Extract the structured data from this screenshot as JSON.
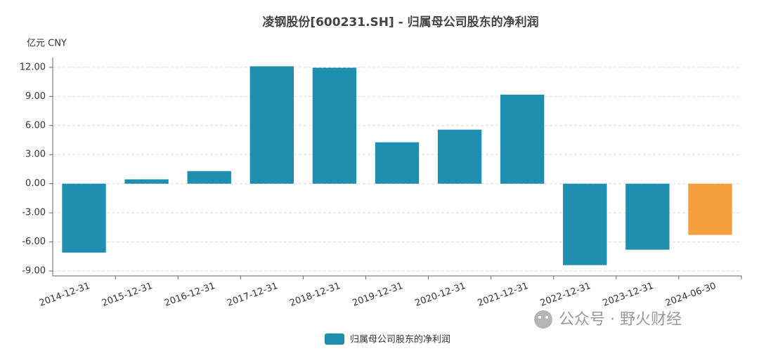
{
  "chart_data": {
    "type": "bar",
    "title": "凌钢股份[600231.SH] - 归属母公司股东的净利润",
    "y_unit": "亿元  CNY",
    "categories": [
      "2014-12-31",
      "2015-12-31",
      "2016-12-31",
      "2017-12-31",
      "2018-12-31",
      "2019-12-31",
      "2020-12-31",
      "2021-12-31",
      "2022-12-31",
      "2023-12-31",
      "2024-06-30"
    ],
    "series": [
      {
        "name": "归属母公司股东的净利润",
        "color": "#1f8fb0",
        "values": [
          -7.1,
          0.45,
          1.3,
          12.1,
          11.95,
          4.27,
          5.57,
          9.18,
          -8.39,
          -6.8,
          -5.28
        ],
        "colors": [
          "#1f8fb0",
          "#1f8fb0",
          "#1f8fb0",
          "#1f8fb0",
          "#1f8fb0",
          "#1f8fb0",
          "#1f8fb0",
          "#1f8fb0",
          "#1f8fb0",
          "#1f8fb0",
          "#f5a03c"
        ]
      }
    ],
    "ylim": [
      -9.5,
      13
    ],
    "yticks": [
      {
        "value": -9,
        "label": "-9.00"
      },
      {
        "value": -6,
        "label": "-6.00"
      },
      {
        "value": -3,
        "label": "-3.00"
      },
      {
        "value": 0,
        "label": "0.00"
      },
      {
        "value": 3,
        "label": "3.00"
      },
      {
        "value": 6,
        "label": "6.00"
      },
      {
        "value": 9,
        "label": "9.00"
      },
      {
        "value": 12,
        "label": "12.00"
      }
    ],
    "grid": true,
    "legend": "bottom",
    "watermark": "公众号 · 野火财经"
  }
}
